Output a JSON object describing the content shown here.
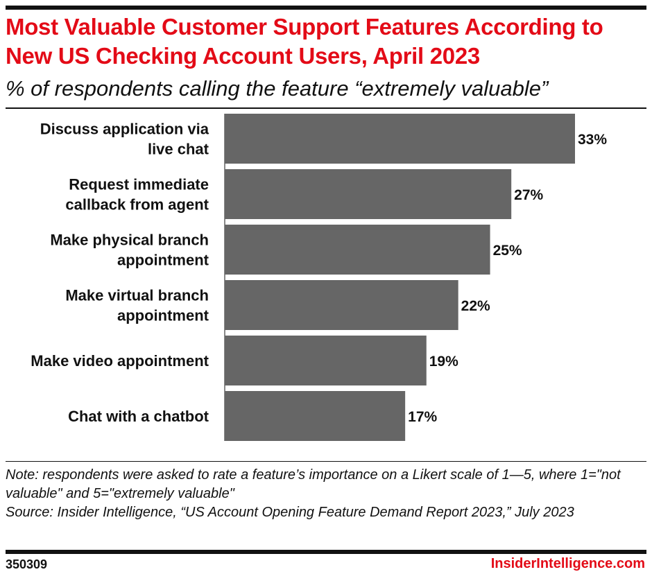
{
  "header": {
    "title": "Most Valuable Customer Support Features According to New US Checking Account Users, April 2023",
    "subtitle": "% of respondents calling the feature “extremely valuable”"
  },
  "chart_data": {
    "type": "bar",
    "orientation": "horizontal",
    "title": "Most Valuable Customer Support Features According to New US Checking Account Users, April 2023",
    "subtitle": "% of respondents calling the feature “extremely valuable”",
    "categories": [
      [
        "Discuss application via",
        "live chat"
      ],
      [
        "Request immediate",
        "callback from agent"
      ],
      [
        "Make physical branch",
        "appointment"
      ],
      [
        "Make virtual branch",
        "appointment"
      ],
      [
        "Make video appointment"
      ],
      [
        "Chat with a chatbot"
      ]
    ],
    "values": [
      33,
      27,
      25,
      22,
      19,
      17
    ],
    "value_labels": [
      "33%",
      "27%",
      "25%",
      "22%",
      "19%",
      "17%"
    ],
    "bar_color": "#666666",
    "xlim": [
      0,
      33
    ],
    "grid": false,
    "legend": "none"
  },
  "footer": {
    "note": "Note: respondents were asked to rate a feature’s importance on a Likert scale of 1—5, where 1=\"not valuable\" and 5=\"extremely valuable\"",
    "source": "Source: Insider Intelligence, “US Account Opening Feature Demand Report 2023,” July 2023",
    "chart_id": "350309",
    "brand": "InsiderIntelligence.com"
  },
  "colors": {
    "accent": "#e30b17",
    "bar": "#666666",
    "text": "#111111"
  }
}
